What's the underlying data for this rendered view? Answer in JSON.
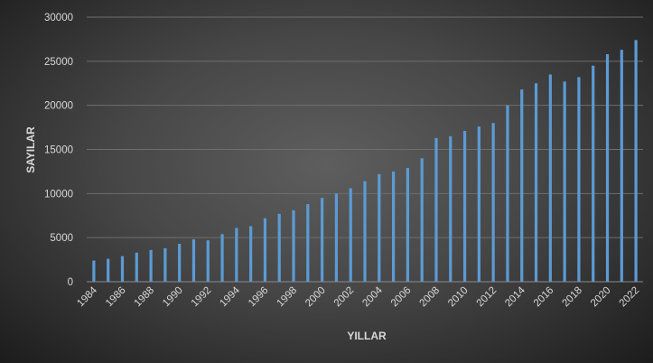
{
  "chart_data": {
    "type": "bar",
    "title": "",
    "xlabel": "YILLAR",
    "ylabel": "SAYILAR",
    "ylim": [
      0,
      30000
    ],
    "yticks": [
      0,
      5000,
      10000,
      15000,
      20000,
      25000,
      30000
    ],
    "grid": true,
    "legend": "none",
    "bar_color": "#5b9bd5",
    "categories": [
      "1984",
      "1985",
      "1986",
      "1987",
      "1988",
      "1989",
      "1990",
      "1991",
      "1992",
      "1993",
      "1994",
      "1995",
      "1996",
      "1997",
      "1998",
      "1999",
      "2000",
      "2001",
      "2002",
      "2003",
      "2004",
      "2005",
      "2006",
      "2007",
      "2008",
      "2009",
      "2010",
      "2011",
      "2012",
      "2013",
      "2014",
      "2015",
      "2016",
      "2017",
      "2018",
      "2019",
      "2020",
      "2021",
      "2022"
    ],
    "xtick_labels": [
      "1984",
      "1986",
      "1988",
      "1990",
      "1992",
      "1994",
      "1996",
      "1998",
      "2000",
      "2002",
      "2004",
      "2006",
      "2008",
      "2010",
      "2012",
      "2014",
      "2016",
      "2018",
      "2020",
      "2022"
    ],
    "values": [
      2400,
      2600,
      2900,
      3300,
      3600,
      3800,
      4300,
      4800,
      4700,
      5400,
      6100,
      6300,
      7200,
      7700,
      8100,
      8800,
      9500,
      10000,
      10600,
      11400,
      12200,
      12500,
      12900,
      14000,
      16300,
      16500,
      17100,
      17600,
      18000,
      20000,
      21800,
      22500,
      23500,
      22700,
      23200,
      24500,
      25800,
      26300,
      27400
    ]
  }
}
